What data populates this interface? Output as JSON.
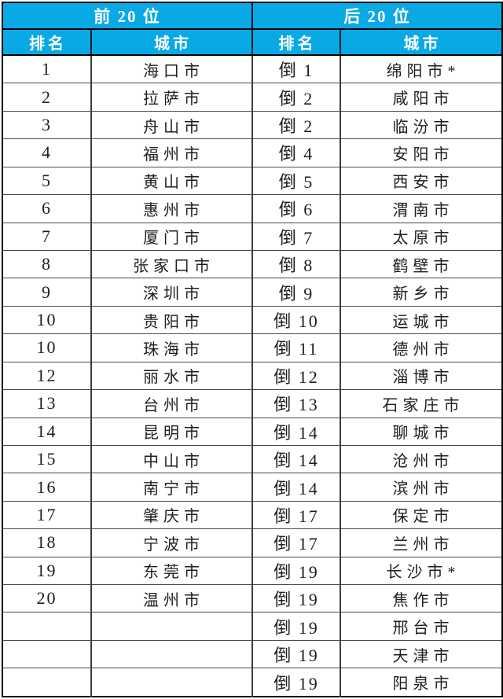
{
  "colors": {
    "header_bg": "#09a9e6",
    "header_text": "#ffffff",
    "outer_border": "#000000",
    "grid_line": "#4a4a4a",
    "cell_text": "#1e1e1e"
  },
  "chart_data": {
    "type": "table",
    "title": "",
    "groups": [
      {
        "header": "前 20 位",
        "col_headers": [
          "排名",
          "城市"
        ],
        "rows": [
          [
            "1",
            "海口市"
          ],
          [
            "2",
            "拉萨市"
          ],
          [
            "3",
            "舟山市"
          ],
          [
            "4",
            "福州市"
          ],
          [
            "5",
            "黄山市"
          ],
          [
            "6",
            "惠州市"
          ],
          [
            "7",
            "厦门市"
          ],
          [
            "8",
            "张家口市"
          ],
          [
            "9",
            "深圳市"
          ],
          [
            "10",
            "贵阳市"
          ],
          [
            "10",
            "珠海市"
          ],
          [
            "12",
            "丽水市"
          ],
          [
            "13",
            "台州市"
          ],
          [
            "14",
            "昆明市"
          ],
          [
            "15",
            "中山市"
          ],
          [
            "16",
            "南宁市"
          ],
          [
            "17",
            "肇庆市"
          ],
          [
            "18",
            "宁波市"
          ],
          [
            "19",
            "东莞市"
          ],
          [
            "20",
            "温州市"
          ],
          [
            "",
            ""
          ],
          [
            "",
            ""
          ],
          [
            "",
            ""
          ]
        ]
      },
      {
        "header": "后 20 位",
        "col_headers": [
          "排名",
          "城市"
        ],
        "rows": [
          [
            "倒 1",
            "绵阳市*"
          ],
          [
            "倒 2",
            "咸阳市"
          ],
          [
            "倒 2",
            "临汾市"
          ],
          [
            "倒 4",
            "安阳市"
          ],
          [
            "倒 5",
            "西安市"
          ],
          [
            "倒 6",
            "渭南市"
          ],
          [
            "倒 7",
            "太原市"
          ],
          [
            "倒 8",
            "鹤壁市"
          ],
          [
            "倒 9",
            "新乡市"
          ],
          [
            "倒 10",
            "运城市"
          ],
          [
            "倒 11",
            "德州市"
          ],
          [
            "倒 12",
            "淄博市"
          ],
          [
            "倒 13",
            "石家庄市"
          ],
          [
            "倒 14",
            "聊城市"
          ],
          [
            "倒 14",
            "沧州市"
          ],
          [
            "倒 14",
            "滨州市"
          ],
          [
            "倒 17",
            "保定市"
          ],
          [
            "倒 17",
            "兰州市"
          ],
          [
            "倒 19",
            "长沙市*"
          ],
          [
            "倒 19",
            "焦作市"
          ],
          [
            "倒 19",
            "邢台市"
          ],
          [
            "倒 19",
            "天津市"
          ],
          [
            "倒 19",
            "阳泉市"
          ]
        ]
      }
    ]
  }
}
